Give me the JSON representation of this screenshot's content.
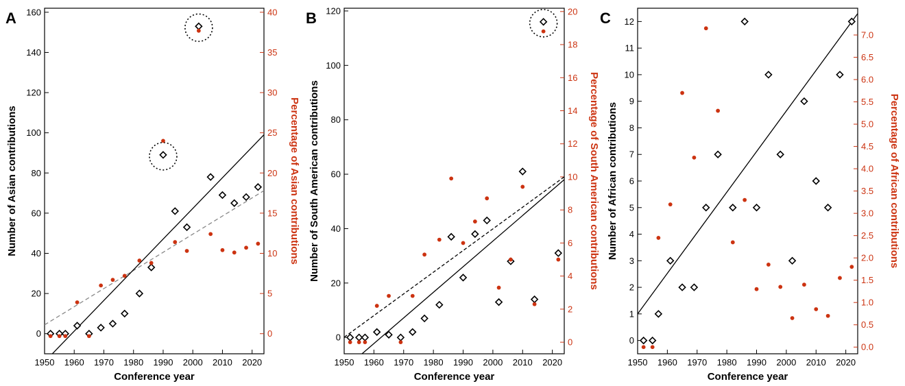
{
  "colors": {
    "count": "#000000",
    "percent": "#cc3311",
    "trend": "#000000",
    "trend_pct_dashed_A": "#888888",
    "trend_pct_dashed_B": "#000000"
  },
  "chart_data": [
    {
      "panel": "A",
      "type": "scatter",
      "xlabel": "Conference year",
      "ylabel": "Number of Asian contributions",
      "ylabel_right": "Percentage of Asian contributions",
      "xlim": [
        1950,
        2024
      ],
      "ylim": [
        -10,
        162
      ],
      "ylim_right": [
        -2.5,
        40.5
      ],
      "xticks": [
        1950,
        1960,
        1970,
        1980,
        1990,
        2000,
        2010,
        2020
      ],
      "yticks": [
        0,
        20,
        40,
        60,
        80,
        100,
        120,
        140,
        160
      ],
      "yticks_right": [
        0,
        5,
        10,
        15,
        20,
        25,
        30,
        35,
        40
      ],
      "series": [
        {
          "role": "count",
          "marker": "diamond",
          "x": [
            1952,
            1955,
            1957,
            1961,
            1965,
            1969,
            1973,
            1977,
            1982,
            1986,
            1994,
            1998,
            2002,
            2006,
            2010,
            2014,
            2018,
            2022
          ],
          "y": [
            0,
            0,
            0,
            4,
            0,
            3,
            5,
            10,
            20,
            33,
            61,
            53,
            153,
            78,
            69,
            65,
            68,
            73
          ]
        },
        {
          "role": "percent",
          "marker": "dot",
          "x": [
            1952,
            1955,
            1957,
            1961,
            1965,
            1969,
            1973,
            1977,
            1982,
            1986,
            1990,
            1994,
            1998,
            2002,
            2006,
            2010,
            2014,
            2018,
            2022
          ],
          "y": [
            -0.3,
            -0.3,
            -0.3,
            3.9,
            -0.3,
            6.0,
            6.7,
            7.2,
            9.1,
            8.8,
            24.0,
            11.4,
            10.3,
            37.7,
            12.4,
            10.4,
            10.1,
            10.7,
            11.2
          ]
        }
      ],
      "extra_count_points": [
        {
          "x": 1990,
          "y": 89
        }
      ],
      "circled": [
        {
          "x": 2002,
          "y": 153
        },
        {
          "x": 1990,
          "y": 89
        }
      ],
      "trend_count": {
        "x": [
          1950,
          2024
        ],
        "y": [
          -14,
          99
        ],
        "style": "solid"
      },
      "trend_percent": {
        "x": [
          1950,
          2024
        ],
        "y": [
          1.1,
          17.8
        ],
        "style": "dashed"
      }
    },
    {
      "panel": "B",
      "type": "scatter",
      "xlabel": "Conference year",
      "ylabel": "Number of South American contributions",
      "ylabel_right": "Percentage of South American contributions",
      "xlim": [
        1950,
        2024
      ],
      "ylim": [
        -6,
        121
      ],
      "ylim_right": [
        -0.7,
        20.2
      ],
      "xticks": [
        1950,
        1960,
        1970,
        1980,
        1990,
        2000,
        2010,
        2020
      ],
      "yticks": [
        0,
        20,
        40,
        60,
        80,
        100,
        120
      ],
      "yticks_right": [
        0,
        2,
        4,
        6,
        8,
        10,
        12,
        14,
        16,
        18,
        20
      ],
      "series": [
        {
          "role": "count",
          "marker": "diamond",
          "x": [
            1952,
            1955,
            1957,
            1961,
            1965,
            1969,
            1973,
            1977,
            1982,
            1986,
            1990,
            1994,
            1998,
            2002,
            2006,
            2010,
            2014,
            2017,
            2022
          ],
          "y": [
            0,
            0,
            0,
            2,
            1,
            0,
            2,
            7,
            12,
            37,
            22,
            38,
            43,
            13,
            28,
            61,
            14,
            116,
            31
          ]
        },
        {
          "role": "percent",
          "marker": "dot",
          "x": [
            1952,
            1955,
            1957,
            1961,
            1965,
            1969,
            1973,
            1977,
            1982,
            1986,
            1990,
            1994,
            1998,
            2002,
            2006,
            2010,
            2014,
            2017,
            2022
          ],
          "y": [
            0.0,
            0.0,
            0.0,
            2.2,
            2.8,
            0.0,
            2.8,
            5.3,
            6.2,
            9.9,
            6.0,
            7.3,
            8.7,
            3.3,
            5.0,
            9.4,
            2.3,
            18.8,
            5.0
          ]
        }
      ],
      "circled": [
        {
          "x": 2017,
          "y": 116
        }
      ],
      "trend_count": {
        "x": [
          1956,
          2024
        ],
        "y": [
          -6,
          58
        ],
        "style": "solid"
      },
      "trend_percent": {
        "x": [
          1950,
          2024
        ],
        "y": [
          0.3,
          10.0
        ],
        "style": "dashed"
      }
    },
    {
      "panel": "C",
      "type": "scatter",
      "xlabel": "Conference year",
      "ylabel": "Number of African contributions",
      "ylabel_right": "Percentage of African contributions",
      "xlim": [
        1950,
        2024
      ],
      "ylim": [
        -0.5,
        12.5
      ],
      "ylim_right": [
        -0.15,
        7.6
      ],
      "xticks": [
        1950,
        1960,
        1970,
        1980,
        1990,
        2000,
        2010,
        2020
      ],
      "yticks": [
        0,
        1,
        2,
        3,
        4,
        5,
        6,
        7,
        8,
        9,
        10,
        11,
        12
      ],
      "yticks_right": [
        "0.0",
        "0.5",
        "1.0",
        "1.5",
        "2.0",
        "2.5",
        "3.0",
        "3.5",
        "4.0",
        "4.5",
        "5.0",
        "5.5",
        "6.0",
        "6.5",
        "7.0"
      ],
      "series": [
        {
          "role": "count",
          "marker": "diamond",
          "x": [
            1952,
            1955,
            1957,
            1961,
            1965,
            1969,
            1973,
            1977,
            1982,
            1986,
            1990,
            1994,
            1998,
            2002,
            2006,
            2010,
            2014,
            2018,
            2022
          ],
          "y": [
            0,
            0,
            1,
            3,
            2,
            2,
            5,
            7,
            5,
            12,
            5,
            10,
            7,
            3,
            9,
            6,
            5,
            10,
            12
          ]
        },
        {
          "role": "percent",
          "marker": "dot",
          "x": [
            1952,
            1955,
            1957,
            1961,
            1965,
            1969,
            1973,
            1977,
            1982,
            1986,
            1990,
            1994,
            1998,
            2002,
            2006,
            2010,
            2014,
            2018,
            2022
          ],
          "y": [
            0.0,
            0.0,
            2.45,
            3.2,
            5.7,
            4.25,
            7.15,
            5.3,
            2.35,
            3.3,
            1.3,
            1.85,
            1.35,
            0.65,
            1.4,
            0.85,
            0.7,
            1.55,
            1.8
          ]
        }
      ],
      "circled": [],
      "trend_count": {
        "x": [
          1950,
          2024
        ],
        "y": [
          1.0,
          12.3
        ],
        "style": "solid"
      }
    }
  ]
}
